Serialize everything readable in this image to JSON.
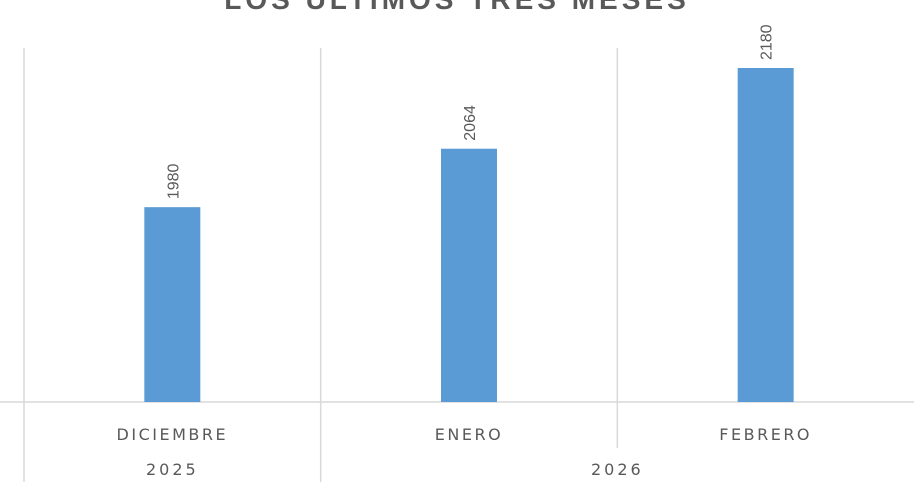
{
  "title": "LOS ÚLTIMOS TRES MESES",
  "chart_data": {
    "type": "bar",
    "title": "LOS ÚLTIMOS TRES MESES",
    "categories": [
      "DICIEMBRE",
      "ENERO",
      "FEBRERO"
    ],
    "groups": [
      {
        "label": "2025",
        "categories": [
          "DICIEMBRE"
        ]
      },
      {
        "label": "2026",
        "categories": [
          "ENERO",
          "FEBRERO"
        ]
      }
    ],
    "values": [
      1980,
      2064,
      2180
    ],
    "data_labels": [
      "1980",
      "2064",
      "2180"
    ],
    "ylim": [
      1700,
      2180
    ],
    "grid": false,
    "colors": {
      "bar": "#5b9bd5",
      "axis": "#d9d9d9",
      "text": "#595959"
    }
  }
}
